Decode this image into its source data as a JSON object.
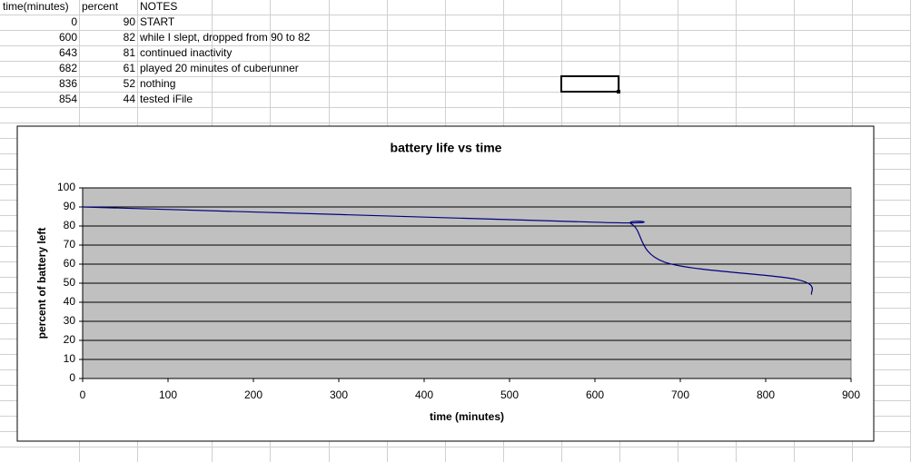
{
  "table": {
    "header": [
      "time(minutes)",
      "percent",
      "NOTES"
    ],
    "rows": [
      [
        0,
        90,
        "START"
      ],
      [
        600,
        82,
        "while I slept, dropped from 90 to 82"
      ],
      [
        643,
        81,
        "continued inactivity"
      ],
      [
        682,
        61,
        "played 20 minutes of cuberunner"
      ],
      [
        836,
        52,
        "nothing"
      ],
      [
        854,
        44,
        "tested iFile"
      ]
    ]
  },
  "chart_data": {
    "type": "line",
    "title": "battery life vs time",
    "x_label": "time (minutes)",
    "y_label": "percent of battery left",
    "x": [
      0,
      600,
      643,
      682,
      836,
      854
    ],
    "series": [
      {
        "color": "#000080",
        "values": [
          90,
          82,
          81,
          61,
          52,
          44
        ]
      }
    ],
    "xlim": [
      0,
      900
    ],
    "xticks": [
      0,
      100,
      200,
      300,
      400,
      500,
      600,
      700,
      800,
      900
    ],
    "ylim": [
      0,
      100
    ],
    "yticks": [
      0,
      10,
      20,
      30,
      40,
      50,
      60,
      70,
      80,
      90,
      100
    ],
    "grid": true
  }
}
